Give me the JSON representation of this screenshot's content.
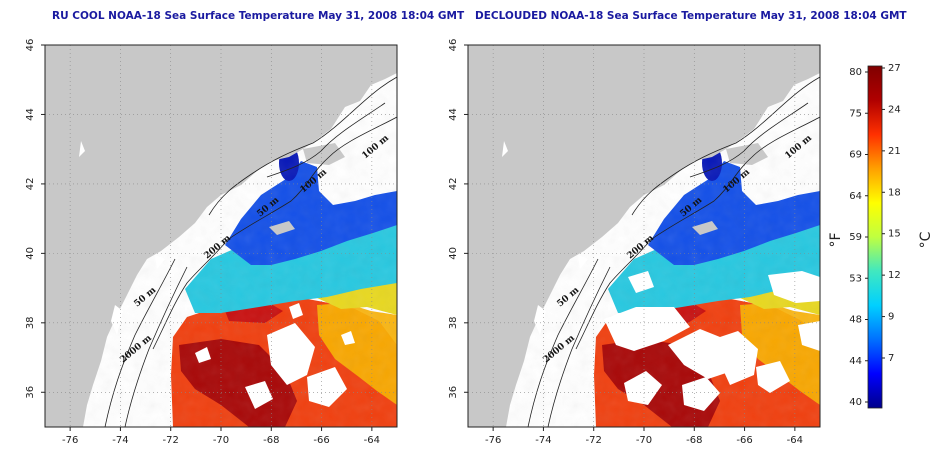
{
  "panels": [
    {
      "id": "raw",
      "title": "RU COOL NOAA-18 Sea Surface Temperature May 31, 2008 18:04 GMT",
      "declouded": false
    },
    {
      "id": "declouded",
      "title": "DECLOUDED NOAA-18 Sea Surface Temperature May 31, 2008 18:04 GMT",
      "declouded": true
    }
  ],
  "axes": {
    "x_ticks": [
      "-76",
      "-74",
      "-72",
      "-70",
      "-68",
      "-66",
      "-64"
    ],
    "y_ticks": [
      "36",
      "38",
      "40",
      "42",
      "44",
      "46"
    ],
    "x_range": [
      -77,
      -63
    ],
    "y_range": [
      35,
      46
    ]
  },
  "contour_labels": [
    "100 m",
    "100 m",
    "50 m",
    "200 m",
    "50 m",
    "2000 m"
  ],
  "colorbar": {
    "fahrenheit_ticks": [
      "80",
      "75",
      "69",
      "64",
      "59",
      "53",
      "48",
      "44",
      "40"
    ],
    "celsius_ticks": [
      "27",
      "24",
      "21",
      "18",
      "15",
      "12",
      "9",
      "7"
    ],
    "fahrenheit_unit": "°F",
    "celsius_unit": "°C",
    "colors": [
      "#00008b",
      "#0000ff",
      "#0070ff",
      "#00d0ff",
      "#40e8c0",
      "#c0ff40",
      "#ffff00",
      "#ffa000",
      "#ff3000",
      "#b00000",
      "#800000"
    ]
  },
  "colors": {
    "land": "#c8c8c8",
    "ocean_nodata": "#ffffff",
    "contour": "#222222",
    "title": "#1a1aa0"
  }
}
